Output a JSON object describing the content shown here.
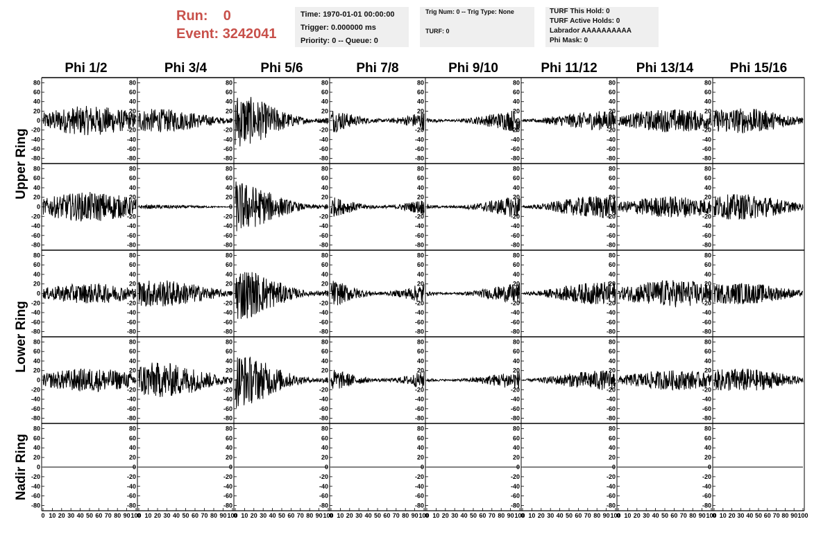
{
  "header": {
    "run_label": "Run:",
    "run_value": "0",
    "event_label": "Event:",
    "event_value": "3242041"
  },
  "info_box_1": {
    "time": "Time: 1970-01-01 00:00:00",
    "trigger": "Trigger: 0.000000 ms",
    "priority": "Priority: 0 -- Queue: 0"
  },
  "info_box_2": {
    "trig": "Trig Num: 0 -- Trig Type: None",
    "turf": "TURF: 0"
  },
  "info_box_3": {
    "hold": "TURF This Hold: 0",
    "active": "TURF Active Holds: 0",
    "labrador": "Labrador AAAAAAAAAA",
    "phimask": "Phi Mask: 0"
  },
  "colors": {
    "run_text": "#c8504a",
    "box_bg": "#efefef",
    "trace": "#000000"
  },
  "chart_data": {
    "type": "line",
    "columns": [
      "Phi 1/2",
      "Phi 3/4",
      "Phi 5/6",
      "Phi 7/8",
      "Phi 9/10",
      "Phi 11/12",
      "Phi 13/14",
      "Phi 15/16"
    ],
    "ring_labels": [
      "Upper Ring",
      "Lower Ring",
      "Nadir Ring"
    ],
    "rows_per_ring": [
      2,
      2,
      1
    ],
    "ylim": [
      -85,
      85
    ],
    "xlim": [
      0,
      100
    ],
    "yticks": [
      -80,
      -60,
      -40,
      -20,
      0,
      20,
      40,
      60,
      80
    ],
    "xticks": [
      0,
      10,
      20,
      30,
      40,
      50,
      60,
      70,
      80,
      90,
      100
    ],
    "n_samples": 256,
    "amplitude_rows": [
      [
        15,
        12,
        30,
        22,
        14,
        10,
        12,
        13
      ],
      [
        15,
        2,
        28,
        18,
        13,
        12,
        11,
        13
      ],
      [
        10,
        14,
        30,
        24,
        12,
        12,
        14,
        11
      ],
      [
        12,
        18,
        30,
        20,
        11,
        10,
        10,
        12
      ],
      [
        0,
        0,
        0,
        0,
        0,
        0,
        0,
        0
      ]
    ],
    "grid": false
  }
}
